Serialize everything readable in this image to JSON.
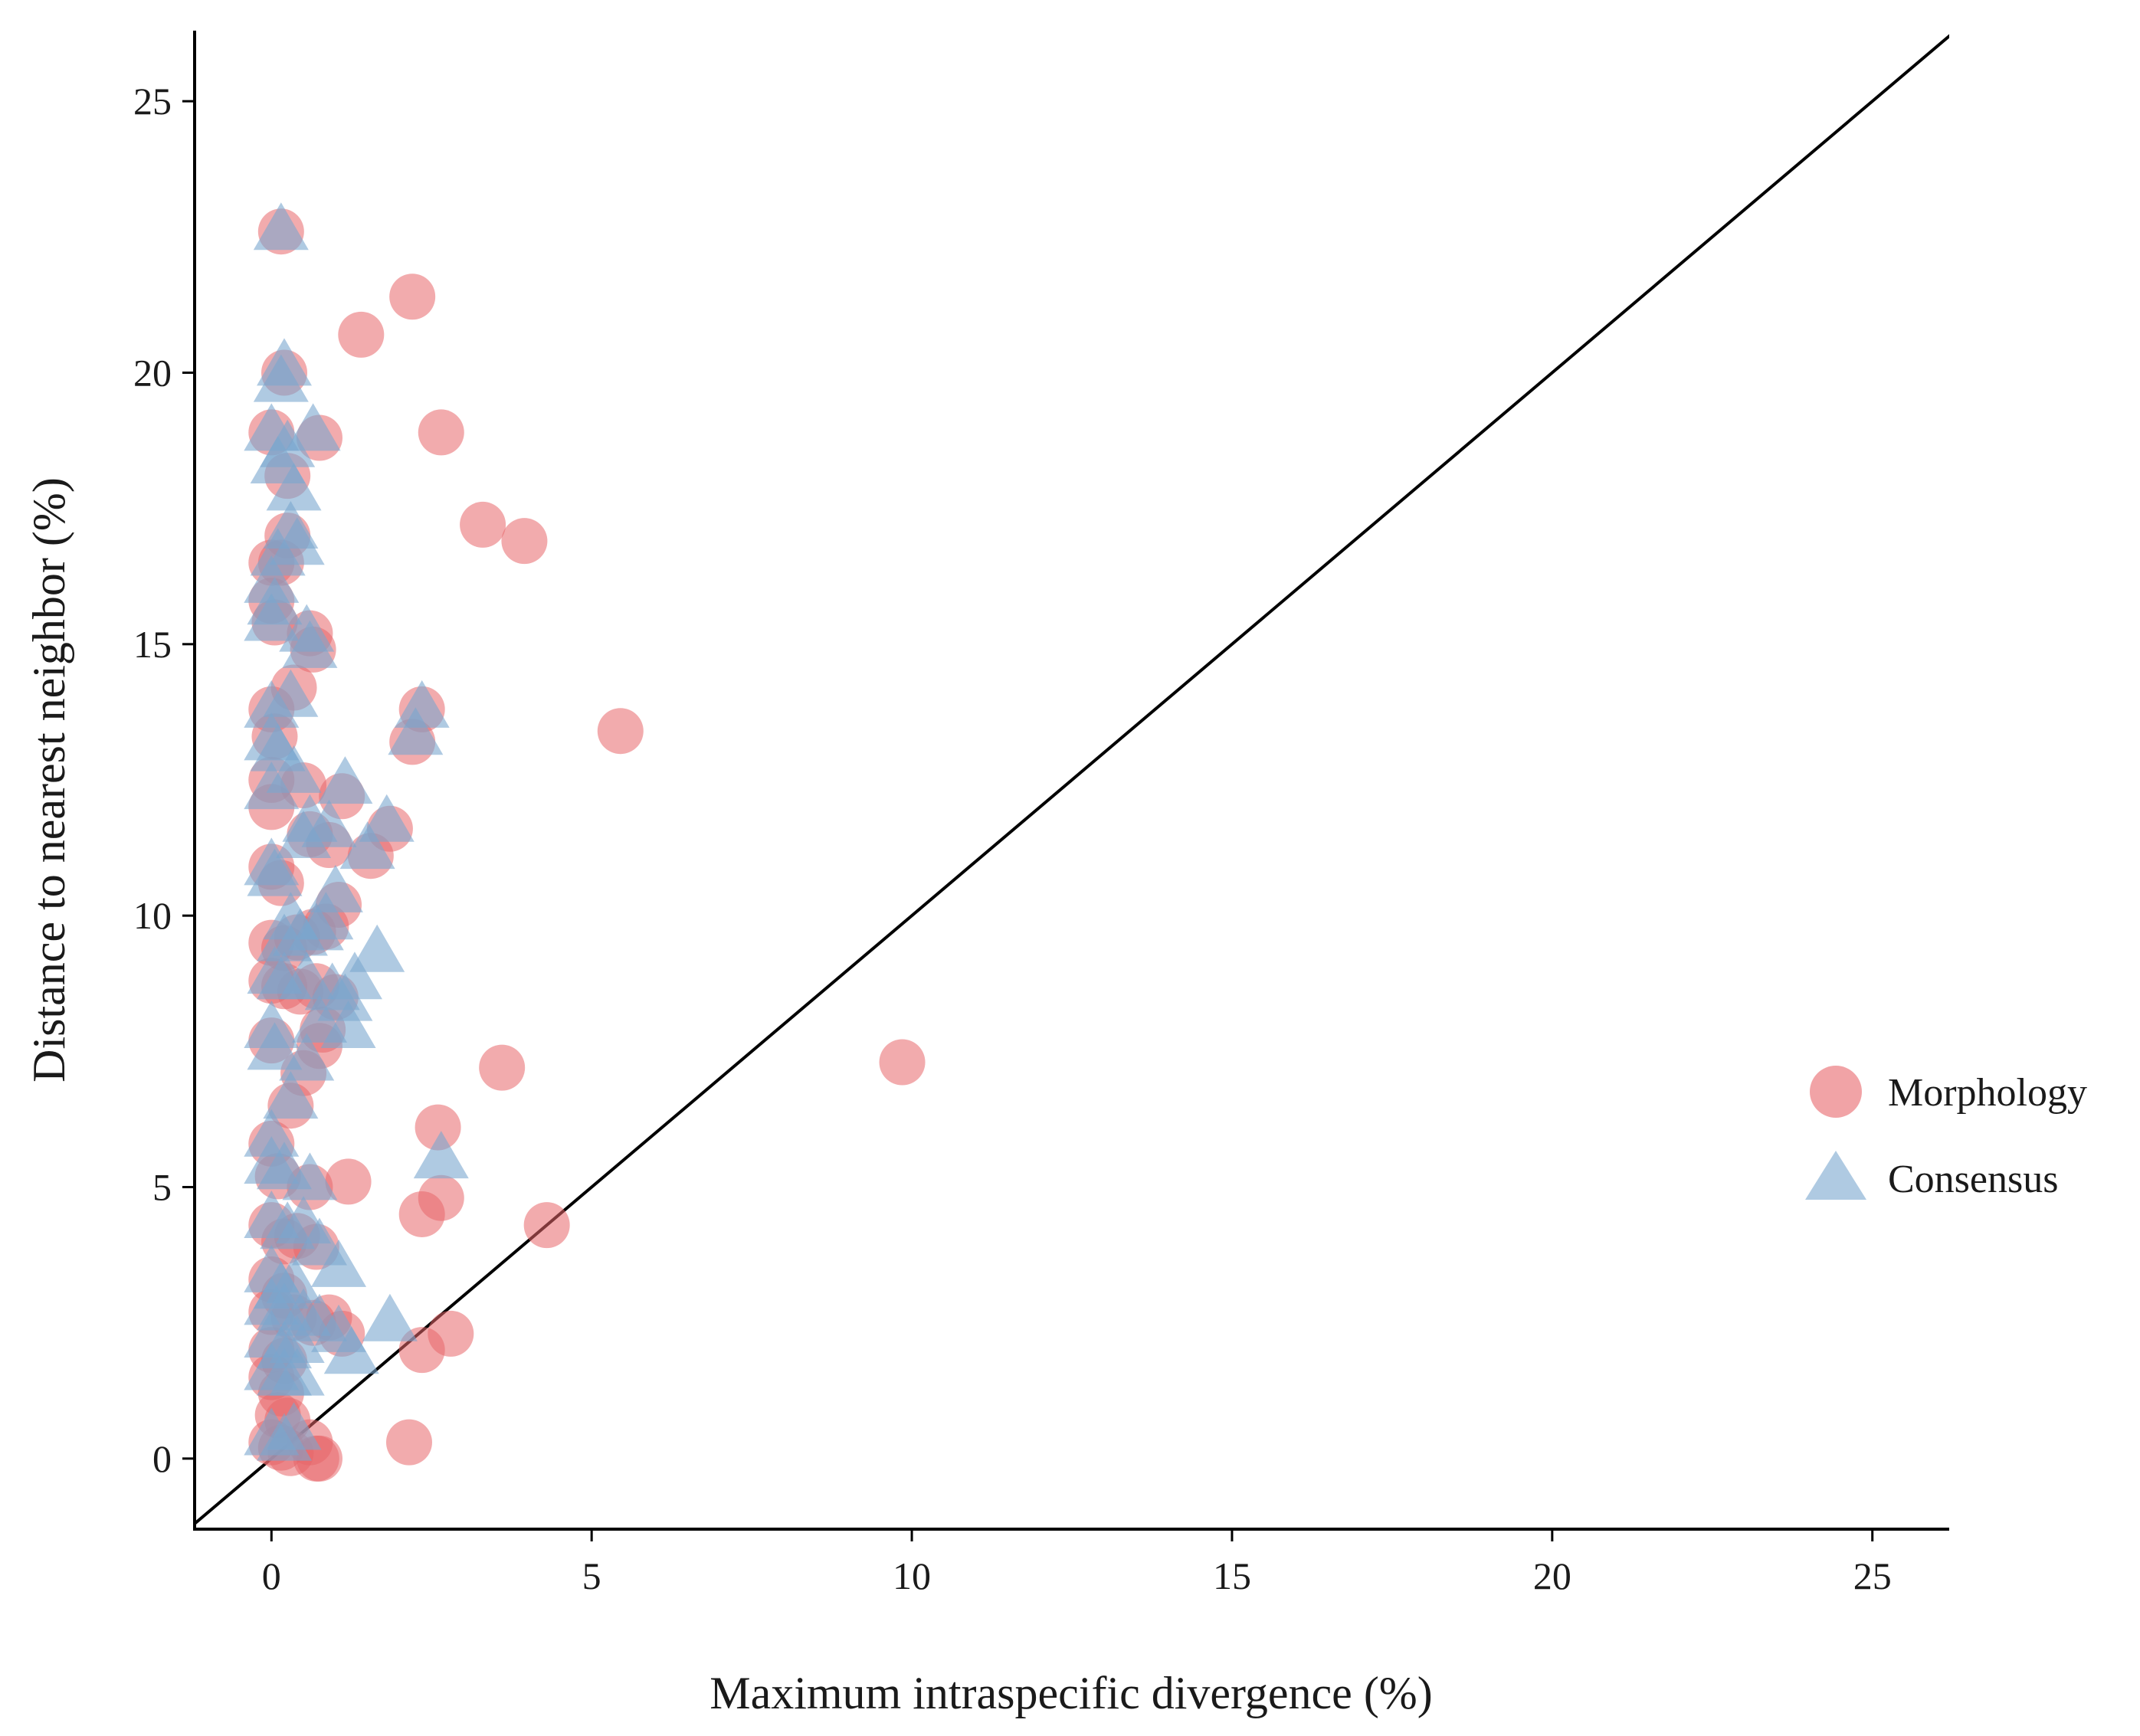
{
  "chart_data": {
    "type": "scatter",
    "title": "",
    "xlabel": "Maximum intraspecific divergence (%)",
    "ylabel": "Distance to nearest neighbor (%)",
    "xlim": [
      -1.2,
      26.2
    ],
    "ylim": [
      -1.3,
      26.3
    ],
    "xticks": [
      0,
      5,
      10,
      15,
      20,
      25
    ],
    "yticks": [
      0,
      5,
      10,
      15,
      20,
      25
    ],
    "grid": false,
    "reference_line": "y = x",
    "legend_position": "right",
    "colors": {
      "morphology": "#e8666a",
      "consensus": "#7aa6cf",
      "line": "#000000"
    },
    "series": [
      {
        "name": "Morphology",
        "marker": "circle",
        "points": [
          [
            0.15,
            22.6
          ],
          [
            2.2,
            21.4
          ],
          [
            1.4,
            20.7
          ],
          [
            0.2,
            20.0
          ],
          [
            0.0,
            18.9
          ],
          [
            0.75,
            18.8
          ],
          [
            2.65,
            18.9
          ],
          [
            0.25,
            18.1
          ],
          [
            3.3,
            17.2
          ],
          [
            3.95,
            16.9
          ],
          [
            0.25,
            17.0
          ],
          [
            0.0,
            16.5
          ],
          [
            0.15,
            16.5
          ],
          [
            0.0,
            15.8
          ],
          [
            0.05,
            15.4
          ],
          [
            0.6,
            15.2
          ],
          [
            0.65,
            14.9
          ],
          [
            0.35,
            14.2
          ],
          [
            5.45,
            13.4
          ],
          [
            0.0,
            13.8
          ],
          [
            2.35,
            13.8
          ],
          [
            2.2,
            13.2
          ],
          [
            0.05,
            13.3
          ],
          [
            0.0,
            12.5
          ],
          [
            0.0,
            12.0
          ],
          [
            0.5,
            12.4
          ],
          [
            1.1,
            12.2
          ],
          [
            0.6,
            11.5
          ],
          [
            0.9,
            11.3
          ],
          [
            1.85,
            11.6
          ],
          [
            1.55,
            11.1
          ],
          [
            0.0,
            10.9
          ],
          [
            0.15,
            10.6
          ],
          [
            1.05,
            10.2
          ],
          [
            0.0,
            9.5
          ],
          [
            0.2,
            9.4
          ],
          [
            0.4,
            9.6
          ],
          [
            0.65,
            9.7
          ],
          [
            0.85,
            9.8
          ],
          [
            0.0,
            8.8
          ],
          [
            0.2,
            8.7
          ],
          [
            0.45,
            8.6
          ],
          [
            0.7,
            8.7
          ],
          [
            1.0,
            8.5
          ],
          [
            0.0,
            7.7
          ],
          [
            0.8,
            7.9
          ],
          [
            0.75,
            7.6
          ],
          [
            9.85,
            7.3
          ],
          [
            3.6,
            7.2
          ],
          [
            0.5,
            7.1
          ],
          [
            0.3,
            6.5
          ],
          [
            2.6,
            6.1
          ],
          [
            0.0,
            5.8
          ],
          [
            0.1,
            5.2
          ],
          [
            0.6,
            5.0
          ],
          [
            1.2,
            5.1
          ],
          [
            2.65,
            4.8
          ],
          [
            2.35,
            4.5
          ],
          [
            4.3,
            4.3
          ],
          [
            0.0,
            4.3
          ],
          [
            0.2,
            4.0
          ],
          [
            0.4,
            4.1
          ],
          [
            0.7,
            3.9
          ],
          [
            0.0,
            3.3
          ],
          [
            0.2,
            3.0
          ],
          [
            0.0,
            2.7
          ],
          [
            0.35,
            2.6
          ],
          [
            0.65,
            2.5
          ],
          [
            0.9,
            2.6
          ],
          [
            1.1,
            2.3
          ],
          [
            0.0,
            2.0
          ],
          [
            0.2,
            1.8
          ],
          [
            2.35,
            2.0
          ],
          [
            2.8,
            2.3
          ],
          [
            0.0,
            1.5
          ],
          [
            0.15,
            1.2
          ],
          [
            0.1,
            0.8
          ],
          [
            0.25,
            0.7
          ],
          [
            0.0,
            0.3
          ],
          [
            0.15,
            0.2
          ],
          [
            0.6,
            0.3
          ],
          [
            2.15,
            0.3
          ],
          [
            0.7,
            0.0
          ],
          [
            0.75,
            0.0
          ],
          [
            0.3,
            0.1
          ]
        ]
      },
      {
        "name": "Consensus",
        "marker": "triangle",
        "points": [
          [
            0.15,
            22.6
          ],
          [
            0.2,
            20.1
          ],
          [
            0.15,
            19.8
          ],
          [
            0.0,
            18.9
          ],
          [
            0.65,
            18.9
          ],
          [
            0.1,
            18.3
          ],
          [
            0.25,
            18.6
          ],
          [
            0.35,
            17.8
          ],
          [
            0.3,
            17.1
          ],
          [
            0.1,
            16.6
          ],
          [
            0.4,
            16.8
          ],
          [
            0.0,
            16.1
          ],
          [
            0.05,
            15.7
          ],
          [
            0.0,
            15.4
          ],
          [
            0.55,
            15.2
          ],
          [
            0.6,
            14.9
          ],
          [
            0.3,
            14.0
          ],
          [
            0.0,
            13.8
          ],
          [
            2.35,
            13.8
          ],
          [
            2.25,
            13.3
          ],
          [
            0.0,
            13.2
          ],
          [
            0.1,
            13.0
          ],
          [
            0.0,
            12.3
          ],
          [
            0.35,
            12.6
          ],
          [
            1.15,
            12.4
          ],
          [
            0.6,
            11.7
          ],
          [
            0.5,
            11.4
          ],
          [
            0.9,
            11.6
          ],
          [
            1.8,
            11.7
          ],
          [
            1.5,
            11.2
          ],
          [
            0.0,
            10.9
          ],
          [
            0.05,
            10.7
          ],
          [
            1.0,
            10.4
          ],
          [
            0.3,
            9.9
          ],
          [
            0.2,
            9.5
          ],
          [
            0.45,
            9.6
          ],
          [
            0.7,
            9.7
          ],
          [
            0.85,
            9.9
          ],
          [
            1.65,
            9.3
          ],
          [
            0.05,
            8.9
          ],
          [
            0.2,
            8.8
          ],
          [
            0.55,
            8.8
          ],
          [
            0.95,
            8.6
          ],
          [
            1.15,
            8.4
          ],
          [
            1.3,
            8.8
          ],
          [
            0.0,
            7.9
          ],
          [
            0.05,
            7.5
          ],
          [
            0.75,
            8.0
          ],
          [
            1.2,
            7.9
          ],
          [
            0.55,
            7.3
          ],
          [
            0.3,
            6.6
          ],
          [
            0.0,
            5.9
          ],
          [
            0.0,
            5.4
          ],
          [
            0.2,
            5.3
          ],
          [
            0.6,
            5.1
          ],
          [
            2.65,
            5.5
          ],
          [
            0.0,
            4.4
          ],
          [
            0.25,
            4.2
          ],
          [
            0.5,
            4.3
          ],
          [
            0.75,
            3.9
          ],
          [
            1.05,
            3.5
          ],
          [
            0.0,
            3.4
          ],
          [
            0.15,
            3.1
          ],
          [
            0.35,
            3.2
          ],
          [
            0.0,
            2.8
          ],
          [
            0.2,
            2.7
          ],
          [
            0.5,
            2.6
          ],
          [
            0.75,
            2.5
          ],
          [
            1.05,
            2.3
          ],
          [
            1.85,
            2.5
          ],
          [
            0.0,
            2.2
          ],
          [
            0.2,
            2.0
          ],
          [
            0.4,
            2.1
          ],
          [
            1.25,
            1.9
          ],
          [
            0.0,
            1.6
          ],
          [
            0.2,
            1.5
          ],
          [
            0.4,
            1.5
          ],
          [
            0.0,
            0.4
          ],
          [
            0.2,
            0.3
          ],
          [
            0.35,
            0.5
          ]
        ]
      }
    ]
  }
}
